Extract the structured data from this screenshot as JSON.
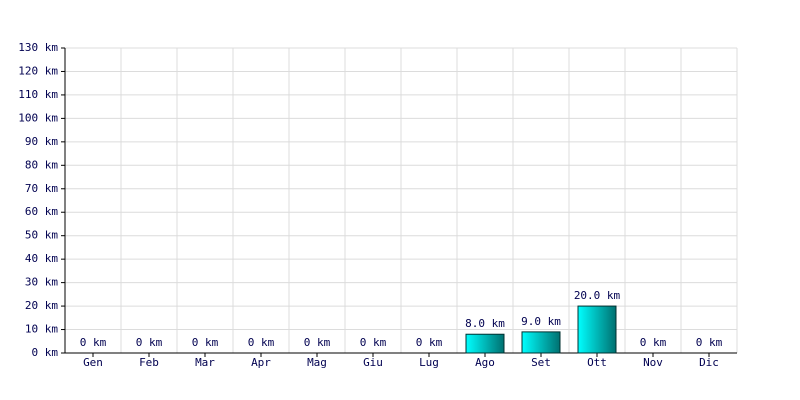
{
  "chart_data": {
    "type": "bar",
    "categories": [
      "Gen",
      "Feb",
      "Mar",
      "Apr",
      "Mag",
      "Giu",
      "Lug",
      "Ago",
      "Set",
      "Ott",
      "Nov",
      "Dic"
    ],
    "values": [
      0,
      0,
      0,
      0,
      0,
      0,
      0,
      8,
      9,
      20,
      0,
      0
    ],
    "value_labels": [
      "0 km",
      "0 km",
      "0 km",
      "0 km",
      "0 km",
      "0 km",
      "0 km",
      "8.0 km",
      "9.0 km",
      "20.0 km",
      "0 km",
      "0 km"
    ],
    "color": "#00b5b5",
    "ylim": [
      0,
      130
    ],
    "yticks": [
      {
        "value": 0,
        "label": "0 km"
      },
      {
        "value": 10,
        "label": "10 km"
      },
      {
        "value": 20,
        "label": "20 km"
      },
      {
        "value": 30,
        "label": "30 km"
      },
      {
        "value": 40,
        "label": "40 km"
      },
      {
        "value": 50,
        "label": "50 km"
      },
      {
        "value": 60,
        "label": "60 km"
      },
      {
        "value": 70,
        "label": "70 km"
      },
      {
        "value": 80,
        "label": "80 km"
      },
      {
        "value": 90,
        "label": "90 km"
      },
      {
        "value": 100,
        "label": "100 km"
      },
      {
        "value": 110,
        "label": "110 km"
      },
      {
        "value": 120,
        "label": "120 km"
      },
      {
        "value": 130,
        "label": "130 km"
      }
    ],
    "grid": true
  }
}
